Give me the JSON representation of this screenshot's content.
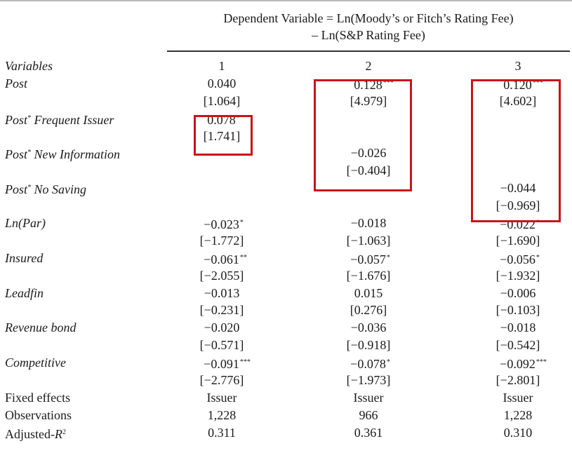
{
  "header": {
    "line1": "Dependent Variable = Ln(Moody’s or Fitch’s Rating Fee)",
    "line2": "– Ln(S&P Rating Fee)"
  },
  "columns": {
    "label": "Variables",
    "c1": "1",
    "c2": "2",
    "c3": "3"
  },
  "rows": [
    {
      "label": "Post",
      "italic": true,
      "c1": "0.040",
      "c2": "0.128",
      "c2s": "***",
      "c3": "0.120",
      "c3s": "***"
    },
    {
      "label": "",
      "c1": "[1.064]",
      "c2": "[4.979]",
      "c3": "[4.602]"
    },
    {
      "label": "Post* Frequent Issuer",
      "italic": true,
      "c1": "0.078",
      "c1s": "*"
    },
    {
      "label": "",
      "c1": "[1.741]"
    },
    {
      "label": "Post* New Information",
      "italic": true,
      "c2": "−0.026"
    },
    {
      "label": "",
      "c2": "[−0.404]"
    },
    {
      "label": "Post* No Saving",
      "italic": true,
      "c3": "−0.044"
    },
    {
      "label": "",
      "c3": "[−0.969]"
    },
    {
      "label": "Ln(Par)",
      "italic": true,
      "c1": "−0.023",
      "c1s": "*",
      "c2": "−0.018",
      "c3": "−0.022",
      "c3s": "*"
    },
    {
      "label": "",
      "c1": "[−1.772]",
      "c2": "[−1.063]",
      "c3": "[−1.690]"
    },
    {
      "label": "Insured",
      "italic": true,
      "c1": "−0.061",
      "c1s": "**",
      "c2": "−0.057",
      "c2s": "*",
      "c3": "−0.056",
      "c3s": "*"
    },
    {
      "label": "",
      "c1": "[−2.055]",
      "c2": "[−1.676]",
      "c3": "[−1.932]"
    },
    {
      "label": "Leadfin",
      "italic": true,
      "c1": "−0.013",
      "c2": "0.015",
      "c3": "−0.006"
    },
    {
      "label": "",
      "c1": "[−0.231]",
      "c2": "[0.276]",
      "c3": "[−0.103]"
    },
    {
      "label": "Revenue bond",
      "italic": true,
      "c1": "−0.020",
      "c2": "−0.036",
      "c3": "−0.018"
    },
    {
      "label": "",
      "c1": "[−0.571]",
      "c2": "[−0.918]",
      "c3": "[−0.542]"
    },
    {
      "label": "Competitive",
      "italic": true,
      "c1": "−0.091",
      "c1s": "***",
      "c2": "−0.078",
      "c2s": "*",
      "c3": "−0.092",
      "c3s": "***"
    },
    {
      "label": "",
      "c1": "[−2.776]",
      "c2": "[−1.973]",
      "c3": "[−2.801]"
    },
    {
      "label": "Fixed effects",
      "italic": false,
      "c1": "Issuer",
      "c2": "Issuer",
      "c3": "Issuer"
    },
    {
      "label": "Observations",
      "italic": false,
      "c1": "1,228",
      "c2": "966",
      "c3": "1,228"
    },
    {
      "label": "Adjusted-R2",
      "italic": false,
      "c1": "0.311",
      "c2": "0.361",
      "c3": "0.310"
    }
  ],
  "highlight_color": "#c8131b"
}
